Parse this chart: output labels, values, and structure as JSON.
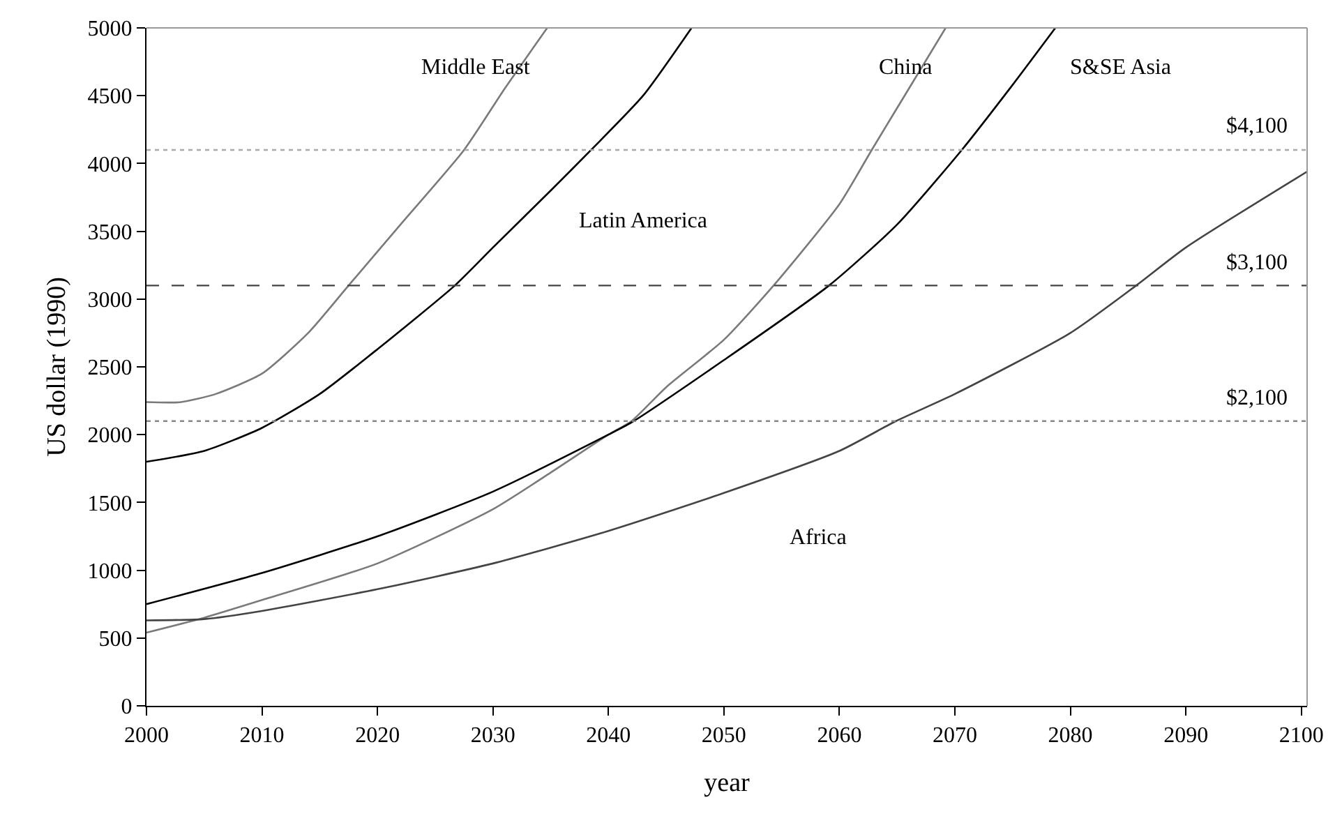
{
  "chart_data": {
    "type": "line",
    "xlabel": "year",
    "ylabel": "US dollar (1990)",
    "xlim": [
      2000,
      2100.5
    ],
    "ylim": [
      0,
      5000
    ],
    "xticks": [
      2000,
      2010,
      2020,
      2030,
      2040,
      2050,
      2060,
      2070,
      2080,
      2090,
      2100
    ],
    "yticks": [
      0,
      500,
      1000,
      1500,
      2000,
      2500,
      3000,
      3500,
      4000,
      4500,
      5000
    ],
    "grid": false,
    "legend": false,
    "marker": "none",
    "line_style": "solid",
    "series": [
      {
        "name": "Middle East",
        "color": "#7a7a7a",
        "x": [
          2000,
          2003,
          2006,
          2010,
          2014,
          2017.5,
          2022,
          2027.5,
          2031,
          2034.7
        ],
        "values": [
          2240,
          2240,
          2300,
          2450,
          2750,
          3100,
          3550,
          4100,
          4550,
          5000
        ]
      },
      {
        "name": "Latin America",
        "color": "#000000",
        "x": [
          2000,
          2005,
          2010,
          2015,
          2020,
          2026.7,
          2030,
          2035,
          2038.5,
          2043,
          2047.2
        ],
        "values": [
          1800,
          1880,
          2050,
          2300,
          2630,
          3100,
          3380,
          3800,
          4100,
          4500,
          5000
        ]
      },
      {
        "name": "China",
        "color": "#7a7a7a",
        "x": [
          2000,
          2005,
          2010,
          2020,
          2030,
          2035,
          2040,
          2042,
          2045,
          2050,
          2054.3,
          2060,
          2062.8,
          2066,
          2069.2
        ],
        "values": [
          540,
          650,
          780,
          1050,
          1450,
          1720,
          2000,
          2100,
          2350,
          2700,
          3100,
          3700,
          4100,
          4550,
          5000
        ]
      },
      {
        "name": "S&SE Asia",
        "color": "#000000",
        "x": [
          2000,
          2010,
          2020,
          2030,
          2040,
          2042,
          2050,
          2059.1,
          2065,
          2070.6,
          2075,
          2078.7
        ],
        "values": [
          750,
          980,
          1250,
          1580,
          2000,
          2090,
          2550,
          3100,
          3550,
          4100,
          4580,
          5000
        ]
      },
      {
        "name": "Africa",
        "color": "#444444",
        "x": [
          2000,
          2005,
          2010,
          2020,
          2030,
          2040,
          2050,
          2060,
          2064.9,
          2070,
          2080,
          2085.7,
          2090,
          2100.5
        ],
        "values": [
          630,
          640,
          700,
          860,
          1050,
          1290,
          1570,
          1880,
          2100,
          2300,
          2750,
          3100,
          3380,
          3940
        ]
      }
    ],
    "ref_lines": [
      {
        "axis": "y",
        "value": 4100,
        "label": "$4,100",
        "color": "#aaaaaa",
        "line_style": "dotted"
      },
      {
        "axis": "y",
        "value": 3100,
        "label": "$3,100",
        "color": "#444444",
        "line_style": "dashed"
      },
      {
        "axis": "y",
        "value": 2100,
        "label": "$2,100",
        "color": "#888888",
        "line_style": "dotted"
      }
    ]
  }
}
